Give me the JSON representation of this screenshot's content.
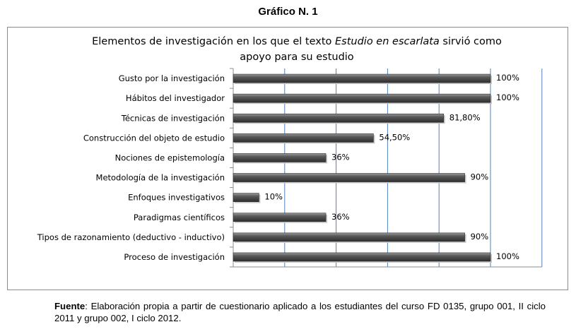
{
  "figure_title": "Gráfico N. 1",
  "chart_data": {
    "type": "bar",
    "orientation": "horizontal",
    "title_part1": "Elementos  de investigación en los que el texto ",
    "title_italic": "Estudio en escarlata",
    "title_part2": " sirvió como apoyo para su estudio",
    "categories": [
      "Gusto por la investigación",
      "Hábitos del investigador",
      "Técnicas de investigación",
      "Construcción del objeto de estudio",
      "Nociones de epistemología",
      "Metodología de la investigación",
      "Enfoques investigativos",
      "Paradigmas científicos",
      "Tipos de razonamiento (deductivo - inductivo)",
      "Proceso de  investigación"
    ],
    "values": [
      100,
      100,
      81.8,
      54.5,
      36,
      90,
      10,
      36,
      90,
      100
    ],
    "value_labels": [
      "100%",
      "100%",
      "81,80%",
      "54,50%",
      "36%",
      "90%",
      "10%",
      "36%",
      "90%",
      "100%"
    ],
    "xlim": [
      0,
      120
    ],
    "grid": true,
    "bar_color": "#404040"
  },
  "source": {
    "label": "Fuente",
    "text": ": Elaboración propia a partir de cuestionario aplicado a los estudiantes del curso FD 0135, grupo 001, II ciclo 2011 y grupo 002, I ciclo 2012."
  }
}
